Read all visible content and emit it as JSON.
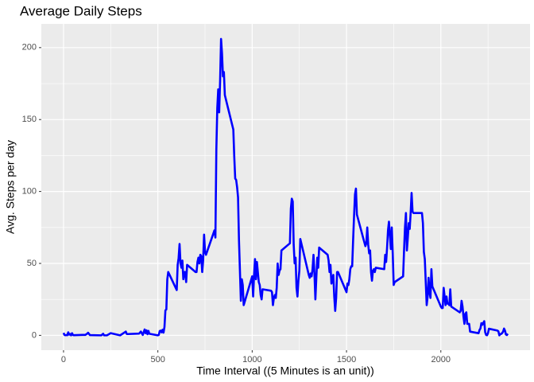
{
  "chart_data": {
    "type": "line",
    "title": "Average Daily Steps",
    "x_label": "Time Interval ((5 Minutes is an unit))",
    "y_label": "Avg. Steps per day",
    "color": "#0000ff",
    "grid": true,
    "xlim": [
      -117.75,
      2472.75
    ],
    "xticks": [
      0,
      500,
      1000,
      1500,
      2000
    ],
    "ylim": [
      -10.3,
      216.5
    ],
    "yticks": [
      0,
      50,
      100,
      150,
      200
    ],
    "x": [
      0,
      5,
      10,
      15,
      20,
      25,
      30,
      35,
      40,
      45,
      50,
      55,
      100,
      115,
      125,
      130,
      140,
      200,
      210,
      215,
      230,
      250,
      300,
      330,
      335,
      340,
      400,
      410,
      420,
      430,
      435,
      440,
      445,
      450,
      455,
      500,
      505,
      510,
      515,
      520,
      525,
      530,
      535,
      540,
      545,
      550,
      555,
      600,
      605,
      610,
      615,
      620,
      625,
      630,
      635,
      640,
      645,
      650,
      655,
      700,
      705,
      710,
      715,
      720,
      725,
      730,
      735,
      740,
      745,
      750,
      755,
      800,
      805,
      810,
      815,
      820,
      825,
      830,
      835,
      840,
      845,
      850,
      855,
      900,
      905,
      910,
      915,
      920,
      925,
      930,
      935,
      940,
      945,
      950,
      955,
      1000,
      1005,
      1010,
      1015,
      1020,
      1025,
      1030,
      1035,
      1040,
      1045,
      1050,
      1055,
      1100,
      1105,
      1110,
      1115,
      1120,
      1125,
      1130,
      1135,
      1140,
      1145,
      1150,
      1155,
      1200,
      1205,
      1210,
      1215,
      1220,
      1225,
      1230,
      1235,
      1240,
      1245,
      1250,
      1255,
      1300,
      1305,
      1310,
      1315,
      1320,
      1325,
      1330,
      1335,
      1340,
      1345,
      1350,
      1355,
      1400,
      1405,
      1410,
      1415,
      1420,
      1425,
      1430,
      1435,
      1440,
      1445,
      1450,
      1455,
      1500,
      1505,
      1510,
      1515,
      1520,
      1525,
      1530,
      1535,
      1540,
      1545,
      1550,
      1555,
      1600,
      1605,
      1610,
      1615,
      1620,
      1625,
      1630,
      1635,
      1640,
      1645,
      1650,
      1655,
      1700,
      1705,
      1710,
      1715,
      1720,
      1725,
      1730,
      1735,
      1740,
      1745,
      1750,
      1755,
      1800,
      1805,
      1810,
      1815,
      1820,
      1825,
      1830,
      1835,
      1840,
      1845,
      1850,
      1855,
      1900,
      1905,
      1910,
      1915,
      1920,
      1925,
      1930,
      1935,
      1940,
      1945,
      1950,
      1955,
      2000,
      2005,
      2010,
      2015,
      2020,
      2025,
      2030,
      2035,
      2040,
      2045,
      2050,
      2055,
      2100,
      2105,
      2110,
      2115,
      2120,
      2125,
      2130,
      2135,
      2140,
      2145,
      2150,
      2155,
      2200,
      2205,
      2210,
      2215,
      2220,
      2225,
      2230,
      2235,
      2240,
      2245,
      2250,
      2255,
      2300,
      2305,
      2310,
      2315,
      2320,
      2325,
      2330,
      2335,
      2340,
      2345,
      2350,
      2355
    ],
    "values": [
      1.7,
      0.3,
      0.1,
      0.2,
      0.1,
      2.1,
      0.5,
      0.9,
      0,
      1.5,
      0.3,
      0.1,
      0.3,
      0.3,
      1.1,
      1.8,
      0.2,
      0,
      1.1,
      0,
      0,
      1.5,
      0,
      2.6,
      1,
      0.9,
      1.2,
      2.6,
      0.3,
      4.1,
      1.5,
      3.5,
      0.8,
      3.1,
      1.1,
      0,
      0.3,
      3,
      3.3,
      2.1,
      3.9,
      1.9,
      5.8,
      17.4,
      18,
      39,
      44,
      31.5,
      49,
      53.8,
      63.5,
      50,
      47,
      52,
      39,
      44,
      44,
      37,
      49,
      44,
      44,
      51,
      54,
      50,
      56,
      55,
      44,
      52,
      70,
      58,
      56,
      73,
      68,
      129,
      158,
      171,
      155,
      177,
      206,
      196,
      180,
      183,
      167,
      143,
      124,
      109,
      108,
      103,
      96,
      66,
      45,
      24,
      39,
      35,
      21,
      41,
      27,
      42,
      53,
      39,
      51,
      44,
      37,
      35,
      28,
      25,
      32,
      31,
      30,
      21,
      26,
      28,
      26,
      33,
      50,
      42,
      45,
      46,
      59,
      64,
      88,
      95,
      93,
      63,
      50,
      54,
      33,
      27,
      38,
      45,
      67,
      42,
      40,
      43,
      41,
      46,
      56,
      43,
      25,
      40,
      54,
      47,
      61,
      56,
      52,
      44,
      49,
      36,
      38,
      42,
      27,
      17,
      26,
      44,
      44,
      30,
      36,
      35,
      39,
      46,
      48,
      48,
      66,
      83,
      98,
      102,
      84,
      62,
      64,
      75,
      63,
      57,
      59,
      44,
      38,
      45,
      46,
      44,
      47,
      46,
      56,
      51,
      61,
      73,
      79,
      69,
      60,
      75,
      57,
      35,
      37,
      41,
      59,
      75,
      85,
      59,
      68,
      78,
      74,
      85,
      99,
      86,
      85,
      85,
      78,
      58,
      53,
      37,
      21,
      27,
      40,
      30,
      26,
      46,
      34,
      20,
      19,
      19,
      33,
      27,
      21,
      27,
      22,
      22,
      21,
      32,
      20,
      16,
      17,
      24,
      20,
      13,
      8,
      15,
      16,
      8,
      8,
      8,
      2.6,
      1.5,
      3.7,
      4.8,
      8.5,
      7.4,
      8.7,
      9.8,
      2.2,
      0.3,
      0.1,
      1.6,
      4.6,
      3.3,
      2.8,
      0,
      0.8,
      1,
      1.6,
      2.6,
      4.7,
      3.3,
      0.6,
      0.2,
      1.1
    ]
  }
}
